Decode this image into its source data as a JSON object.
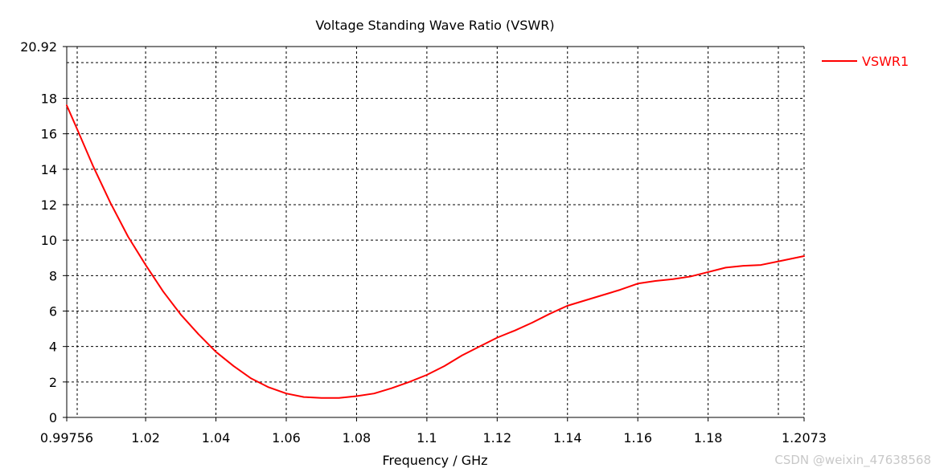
{
  "chart_data": {
    "type": "line",
    "title": "Voltage Standing Wave Ratio (VSWR)",
    "xlabel": "Frequency / GHz",
    "ylabel": "",
    "xlim": [
      0.99756,
      1.2073
    ],
    "ylim": [
      0,
      20.92
    ],
    "x_tick_labels": [
      "0.99756",
      "1.02",
      "1.04",
      "1.06",
      "1.08",
      "1.1",
      "1.12",
      "1.14",
      "1.16",
      "1.18",
      "1.2073"
    ],
    "x_ticks": [
      0.99756,
      1.02,
      1.04,
      1.06,
      1.08,
      1.1,
      1.12,
      1.14,
      1.16,
      1.18,
      1.2073
    ],
    "y_tick_labels": [
      "0",
      "2",
      "4",
      "6",
      "8",
      "10",
      "12",
      "14",
      "16",
      "18",
      "20.92"
    ],
    "y_ticks": [
      0,
      2,
      4,
      6,
      8,
      10,
      12,
      14,
      16,
      18,
      20.92
    ],
    "grid": true,
    "grid_style": "dashed",
    "legend_placement": "top-right",
    "series": [
      {
        "name": "VSWR1",
        "color": "#ff0000",
        "x": [
          0.99756,
          1.0,
          1.005,
          1.01,
          1.015,
          1.02,
          1.025,
          1.03,
          1.035,
          1.04,
          1.045,
          1.05,
          1.055,
          1.06,
          1.065,
          1.07,
          1.075,
          1.08,
          1.085,
          1.09,
          1.095,
          1.1,
          1.105,
          1.11,
          1.115,
          1.12,
          1.125,
          1.13,
          1.135,
          1.14,
          1.145,
          1.15,
          1.155,
          1.16,
          1.165,
          1.17,
          1.175,
          1.18,
          1.185,
          1.19,
          1.195,
          1.2,
          1.2073
        ],
        "y": [
          17.6,
          16.5,
          14.2,
          12.1,
          10.2,
          8.6,
          7.1,
          5.8,
          4.7,
          3.7,
          2.9,
          2.2,
          1.7,
          1.35,
          1.15,
          1.1,
          1.1,
          1.2,
          1.35,
          1.65,
          2.0,
          2.4,
          2.9,
          3.5,
          4.0,
          4.5,
          4.9,
          5.35,
          5.85,
          6.3,
          6.6,
          6.9,
          7.2,
          7.55,
          7.7,
          7.8,
          7.95,
          8.2,
          8.45,
          8.55,
          8.6,
          8.8,
          9.1
        ]
      }
    ]
  },
  "colors": {
    "line": "#ff0000",
    "grid": "#000000",
    "axis": "#000000",
    "text": "#000000",
    "watermark": "#c8c8c8"
  },
  "watermark": "CSDN @weixin_47638568"
}
